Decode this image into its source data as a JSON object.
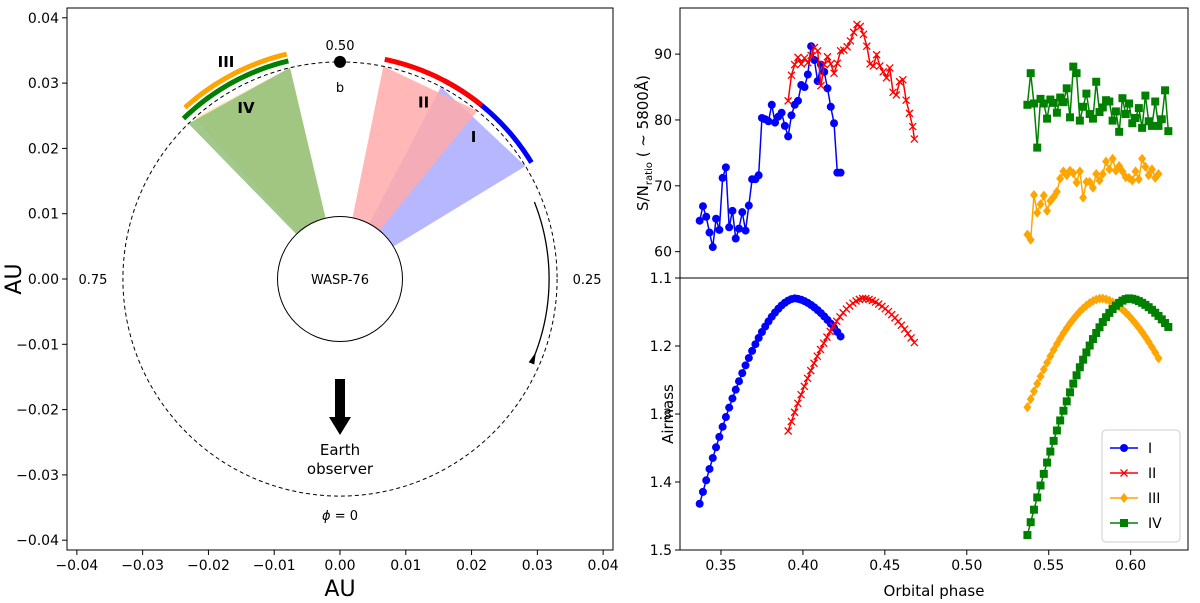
{
  "chart_data": [
    {
      "type": "orbit-diagram",
      "xlabel": "AU",
      "ylabel": "AU",
      "xlim": [
        -0.0415,
        0.0415
      ],
      "ylim": [
        -0.0415,
        0.0415
      ],
      "x_ticks": [
        -0.04,
        -0.03,
        -0.02,
        -0.01,
        0.0,
        0.01,
        0.02,
        0.03,
        0.04
      ],
      "y_ticks": [
        -0.04,
        -0.03,
        -0.02,
        -0.01,
        0.0,
        0.01,
        0.02,
        0.03,
        0.04
      ],
      "x_tick_labels": [
        "−0.04",
        "−0.03",
        "−0.02",
        "−0.01",
        "0.00",
        "0.01",
        "0.02",
        "0.03",
        "0.04"
      ],
      "y_tick_labels": [
        "−0.04",
        "−0.03",
        "−0.02",
        "−0.01",
        "0.00",
        "0.01",
        "0.02",
        "0.03",
        "0.04"
      ],
      "orbit_radius_au": 0.033,
      "star": {
        "label": "WASP-76",
        "radius_au": 0.0095
      },
      "planet": {
        "label": "b",
        "phase": 0.5
      },
      "phase_labels": [
        {
          "text": "0.50",
          "phase": 0.5
        },
        {
          "text": "0.25",
          "phase": 0.25
        },
        {
          "text": "0.75",
          "phase": 0.75
        },
        {
          "text": "ϕ = 0",
          "phase": 0.0
        }
      ],
      "observer": {
        "line1": "Earth",
        "line2": "observer"
      },
      "nights": [
        {
          "name": "I",
          "phase_start": 0.337,
          "phase_end": 0.423,
          "color": "#0000ff",
          "fill": "#aaaaff"
        },
        {
          "name": "II",
          "phase_start": 0.391,
          "phase_end": 0.468,
          "color": "#ff0000",
          "fill": "#ffaaaa"
        },
        {
          "name": "III",
          "phase_start": 0.537,
          "phase_end": 0.617,
          "color": "#ffa500",
          "fill": "#ffe4b0"
        },
        {
          "name": "IV",
          "phase_start": 0.537,
          "phase_end": 0.623,
          "color": "#008000",
          "fill": "#8fbf77"
        }
      ]
    },
    {
      "type": "line",
      "xlabel": "Orbital phase",
      "ylabel": "S/N_ratio (~5800Å)",
      "ylabel_main": "S/N",
      "ylabel_sub": "ratio",
      "ylabel_rest": " ( ~ 5800Å)",
      "xlim": [
        0.325,
        0.635
      ],
      "ylim": [
        56,
        97
      ],
      "y_ticks": [
        60,
        70,
        80,
        90
      ],
      "series": [
        {
          "name": "I",
          "color": "#0000ff",
          "marker": "circle",
          "x": [
            0.337,
            0.339,
            0.341,
            0.343,
            0.345,
            0.347,
            0.349,
            0.351,
            0.353,
            0.355,
            0.357,
            0.359,
            0.361,
            0.363,
            0.365,
            0.367,
            0.369,
            0.371,
            0.373,
            0.375,
            0.377,
            0.379,
            0.381,
            0.383,
            0.385,
            0.387,
            0.389,
            0.391,
            0.393,
            0.395,
            0.397,
            0.399,
            0.401,
            0.403,
            0.405,
            0.407,
            0.409,
            0.411,
            0.413,
            0.415,
            0.417,
            0.419,
            0.421,
            0.423
          ],
          "y": [
            64.7,
            66.9,
            65.3,
            62.9,
            60.7,
            65.0,
            63.3,
            71.2,
            72.8,
            63.7,
            66.2,
            62.0,
            63.5,
            66.0,
            63.2,
            67.0,
            71.0,
            71.0,
            71.6,
            80.3,
            80.1,
            79.8,
            82.3,
            79.6,
            80.5,
            81.1,
            79.1,
            77.5,
            80.7,
            82.3,
            82.9,
            85.3,
            85.0,
            86.9,
            91.2,
            89.1,
            85.9,
            88.4,
            87.3,
            84.8,
            82.0,
            79.5,
            72.0,
            72.0
          ]
        },
        {
          "name": "II",
          "color": "#ff0000",
          "marker": "x",
          "x": [
            0.391,
            0.393,
            0.395,
            0.397,
            0.399,
            0.401,
            0.403,
            0.405,
            0.407,
            0.409,
            0.411,
            0.413,
            0.415,
            0.417,
            0.419,
            0.421,
            0.423,
            0.425,
            0.427,
            0.429,
            0.431,
            0.433,
            0.435,
            0.437,
            0.439,
            0.441,
            0.443,
            0.445,
            0.447,
            0.449,
            0.451,
            0.453,
            0.455,
            0.457,
            0.459,
            0.461,
            0.463,
            0.465,
            0.467,
            0.468
          ],
          "y": [
            82.9,
            86.8,
            88.4,
            89.5,
            88.5,
            89.4,
            88.7,
            89.8,
            91.0,
            90.5,
            85.2,
            88.4,
            89.6,
            88.5,
            87.1,
            88.6,
            90.5,
            90.6,
            91.1,
            92.0,
            93.3,
            94.5,
            94.2,
            93.0,
            91.2,
            88.5,
            88.2,
            89.9,
            88.2,
            87.3,
            86.4,
            87.9,
            84.2,
            83.8,
            85.8,
            86.1,
            83.0,
            81.0,
            79.0,
            77.1
          ]
        },
        {
          "name": "III",
          "color": "#ffa500",
          "marker": "diamond",
          "x": [
            0.537,
            0.539,
            0.541,
            0.543,
            0.545,
            0.547,
            0.549,
            0.551,
            0.553,
            0.555,
            0.557,
            0.559,
            0.561,
            0.563,
            0.565,
            0.567,
            0.569,
            0.571,
            0.573,
            0.575,
            0.577,
            0.579,
            0.581,
            0.583,
            0.585,
            0.587,
            0.589,
            0.591,
            0.593,
            0.595,
            0.597,
            0.599,
            0.601,
            0.603,
            0.605,
            0.607,
            0.609,
            0.611,
            0.613,
            0.615,
            0.617
          ],
          "y": [
            62.6,
            61.8,
            68.6,
            65.9,
            67.2,
            68.5,
            66.2,
            67.7,
            68.3,
            69.1,
            71.1,
            72.2,
            71.6,
            72.3,
            71.9,
            70.5,
            72.2,
            68.2,
            70.6,
            70.6,
            69.7,
            71.8,
            70.8,
            71.8,
            73.7,
            72.5,
            74.1,
            72.3,
            73.0,
            72.2,
            71.3,
            71.2,
            70.8,
            72.2,
            71.0,
            74.1,
            72.9,
            71.6,
            72.5,
            71.2,
            71.8
          ]
        },
        {
          "name": "IV",
          "color": "#008000",
          "marker": "square",
          "x": [
            0.537,
            0.539,
            0.541,
            0.543,
            0.545,
            0.547,
            0.549,
            0.551,
            0.553,
            0.555,
            0.557,
            0.559,
            0.561,
            0.563,
            0.565,
            0.567,
            0.569,
            0.571,
            0.573,
            0.575,
            0.577,
            0.579,
            0.581,
            0.583,
            0.585,
            0.587,
            0.589,
            0.591,
            0.593,
            0.595,
            0.597,
            0.599,
            0.601,
            0.603,
            0.605,
            0.607,
            0.609,
            0.611,
            0.613,
            0.615,
            0.617,
            0.619,
            0.621,
            0.623
          ],
          "y": [
            82.3,
            87.1,
            82.5,
            75.8,
            83.2,
            82.5,
            80.2,
            83.1,
            82.6,
            81.1,
            83.4,
            82.7,
            84.8,
            80.4,
            88.1,
            87.1,
            79.9,
            82.0,
            84.0,
            80.9,
            80.2,
            85.8,
            81.2,
            81.9,
            83.0,
            82.8,
            79.9,
            81.3,
            78.2,
            83.3,
            80.9,
            82.5,
            79.5,
            80.3,
            81.8,
            78.8,
            83.7,
            79.8,
            79.1,
            82.8,
            79.1,
            80.1,
            84.5,
            78.3
          ]
        }
      ]
    },
    {
      "type": "line",
      "xlabel": "Orbital phase",
      "ylabel": "Airmass",
      "xlim": [
        0.325,
        0.635
      ],
      "ylim": [
        1.5,
        1.1
      ],
      "y_ticks": [
        1.1,
        1.2,
        1.3,
        1.4,
        1.5
      ],
      "x_ticks": [
        0.35,
        0.4,
        0.45,
        0.5,
        0.55,
        0.6
      ],
      "x_tick_labels": [
        "0.35",
        "0.40",
        "0.45",
        "0.50",
        "0.55",
        "0.60"
      ],
      "y_tick_labels": [
        "1.1",
        "1.2",
        "1.3",
        "1.4",
        "1.5"
      ],
      "series": [
        {
          "name": "I",
          "color": "#0000ff",
          "marker": "circle",
          "phase_start": 0.337,
          "phase_end": 0.423,
          "n": 44,
          "peak_phase": 0.395,
          "min_airmass": 1.13,
          "start_airmass": 1.432,
          "end_airmass": 1.186
        },
        {
          "name": "II",
          "color": "#ff0000",
          "marker": "x",
          "phase_start": 0.391,
          "phase_end": 0.468,
          "n": 40,
          "peak_phase": 0.437,
          "min_airmass": 1.13,
          "start_airmass": 1.325,
          "end_airmass": 1.195
        },
        {
          "name": "III",
          "color": "#ffa500",
          "marker": "diamond",
          "phase_start": 0.537,
          "phase_end": 0.617,
          "n": 41,
          "peak_phase": 0.582,
          "min_airmass": 1.13,
          "start_airmass": 1.29,
          "end_airmass": 1.218
        },
        {
          "name": "IV",
          "color": "#008000",
          "marker": "square",
          "phase_start": 0.537,
          "phase_end": 0.623,
          "n": 44,
          "peak_phase": 0.599,
          "min_airmass": 1.13,
          "start_airmass": 1.478,
          "end_airmass": 1.172
        }
      ],
      "legend": {
        "placement": "lower-right",
        "entries": [
          "I",
          "II",
          "III",
          "IV"
        ]
      }
    }
  ]
}
